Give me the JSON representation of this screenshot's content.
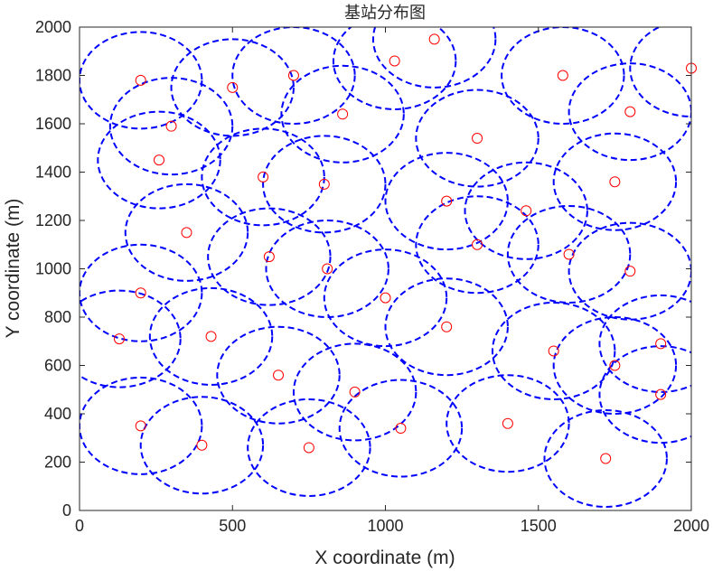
{
  "chart_data": {
    "type": "scatter",
    "title": "基站分布图",
    "xlabel": "X coordinate (m)",
    "ylabel": "Y coordinate (m)",
    "xlim": [
      0,
      2000
    ],
    "ylim": [
      0,
      2000
    ],
    "xticks": [
      0,
      500,
      1000,
      1500,
      2000
    ],
    "yticks": [
      0,
      200,
      400,
      600,
      800,
      1000,
      1200,
      1400,
      1600,
      1800,
      2000
    ],
    "grid": false,
    "colors": {
      "points": "#ff0000",
      "coverage": "#0000ff",
      "axes": "#262626"
    },
    "coverage_radius": 200,
    "points": [
      {
        "x": 200,
        "y": 1780
      },
      {
        "x": 500,
        "y": 1750
      },
      {
        "x": 700,
        "y": 1800
      },
      {
        "x": 1160,
        "y": 1950
      },
      {
        "x": 1030,
        "y": 1860
      },
      {
        "x": 1580,
        "y": 1800
      },
      {
        "x": 2000,
        "y": 1830
      },
      {
        "x": 300,
        "y": 1590
      },
      {
        "x": 860,
        "y": 1640
      },
      {
        "x": 1800,
        "y": 1650
      },
      {
        "x": 260,
        "y": 1450
      },
      {
        "x": 1300,
        "y": 1540
      },
      {
        "x": 600,
        "y": 1380
      },
      {
        "x": 800,
        "y": 1350
      },
      {
        "x": 1750,
        "y": 1360
      },
      {
        "x": 1200,
        "y": 1280
      },
      {
        "x": 1460,
        "y": 1240
      },
      {
        "x": 350,
        "y": 1150
      },
      {
        "x": 620,
        "y": 1050
      },
      {
        "x": 1300,
        "y": 1100
      },
      {
        "x": 1600,
        "y": 1060
      },
      {
        "x": 1800,
        "y": 990
      },
      {
        "x": 810,
        "y": 1000
      },
      {
        "x": 200,
        "y": 900
      },
      {
        "x": 1000,
        "y": 880
      },
      {
        "x": 1200,
        "y": 760
      },
      {
        "x": 130,
        "y": 710
      },
      {
        "x": 430,
        "y": 720
      },
      {
        "x": 1550,
        "y": 660
      },
      {
        "x": 1900,
        "y": 690
      },
      {
        "x": 1750,
        "y": 600
      },
      {
        "x": 650,
        "y": 560
      },
      {
        "x": 900,
        "y": 490
      },
      {
        "x": 1900,
        "y": 480
      },
      {
        "x": 1400,
        "y": 360
      },
      {
        "x": 200,
        "y": 350
      },
      {
        "x": 1050,
        "y": 340
      },
      {
        "x": 400,
        "y": 270
      },
      {
        "x": 750,
        "y": 260
      },
      {
        "x": 1720,
        "y": 215
      }
    ]
  }
}
